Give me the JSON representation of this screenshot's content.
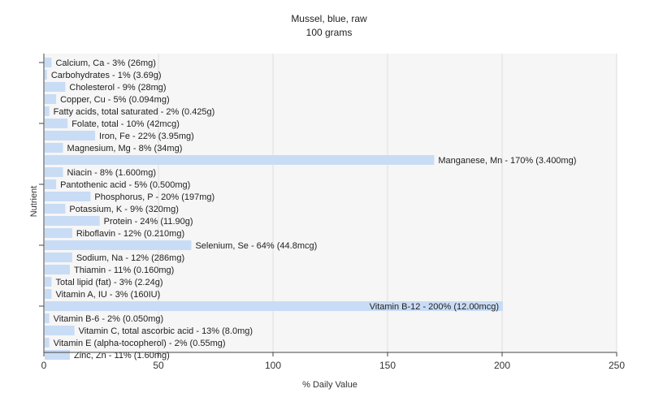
{
  "chart_data": {
    "type": "bar",
    "orientation": "horizontal",
    "title": "Mussel, blue, raw",
    "subtitle": "100 grams",
    "xlabel": "% Daily Value",
    "ylabel": "Nutrient",
    "xlim": [
      0,
      250
    ],
    "xticks": [
      0,
      50,
      100,
      150,
      200,
      250
    ],
    "grid": true,
    "bar_color": "#c9dcf5",
    "background": "#f6f6f6",
    "categories": [
      "Calcium, Ca - 3% (26mg)",
      "Carbohydrates - 1% (3.69g)",
      "Cholesterol - 9% (28mg)",
      "Copper, Cu - 5% (0.094mg)",
      "Fatty acids, total saturated - 2% (0.425g)",
      "Folate, total - 10% (42mcg)",
      "Iron, Fe - 22% (3.95mg)",
      "Magnesium, Mg - 8% (34mg)",
      "Manganese, Mn - 170% (3.400mg)",
      "Niacin - 8% (1.600mg)",
      "Pantothenic acid - 5% (0.500mg)",
      "Phosphorus, P - 20% (197mg)",
      "Potassium, K - 9% (320mg)",
      "Protein - 24% (11.90g)",
      "Riboflavin - 12% (0.210mg)",
      "Selenium, Se - 64% (44.8mcg)",
      "Sodium, Na - 12% (286mg)",
      "Thiamin - 11% (0.160mg)",
      "Total lipid (fat) - 3% (2.24g)",
      "Vitamin A, IU - 3% (160IU)",
      "Vitamin B-12 - 200% (12.00mcg)",
      "Vitamin B-6 - 2% (0.050mg)",
      "Vitamin C, total ascorbic acid - 13% (8.0mg)",
      "Vitamin E (alpha-tocopherol) - 2% (0.55mg)",
      "Zinc, Zn - 11% (1.60mg)"
    ],
    "values": [
      3,
      1,
      9,
      5,
      2,
      10,
      22,
      8,
      170,
      8,
      5,
      20,
      9,
      24,
      12,
      64,
      12,
      11,
      3,
      3,
      200,
      2,
      13,
      2,
      11
    ]
  }
}
